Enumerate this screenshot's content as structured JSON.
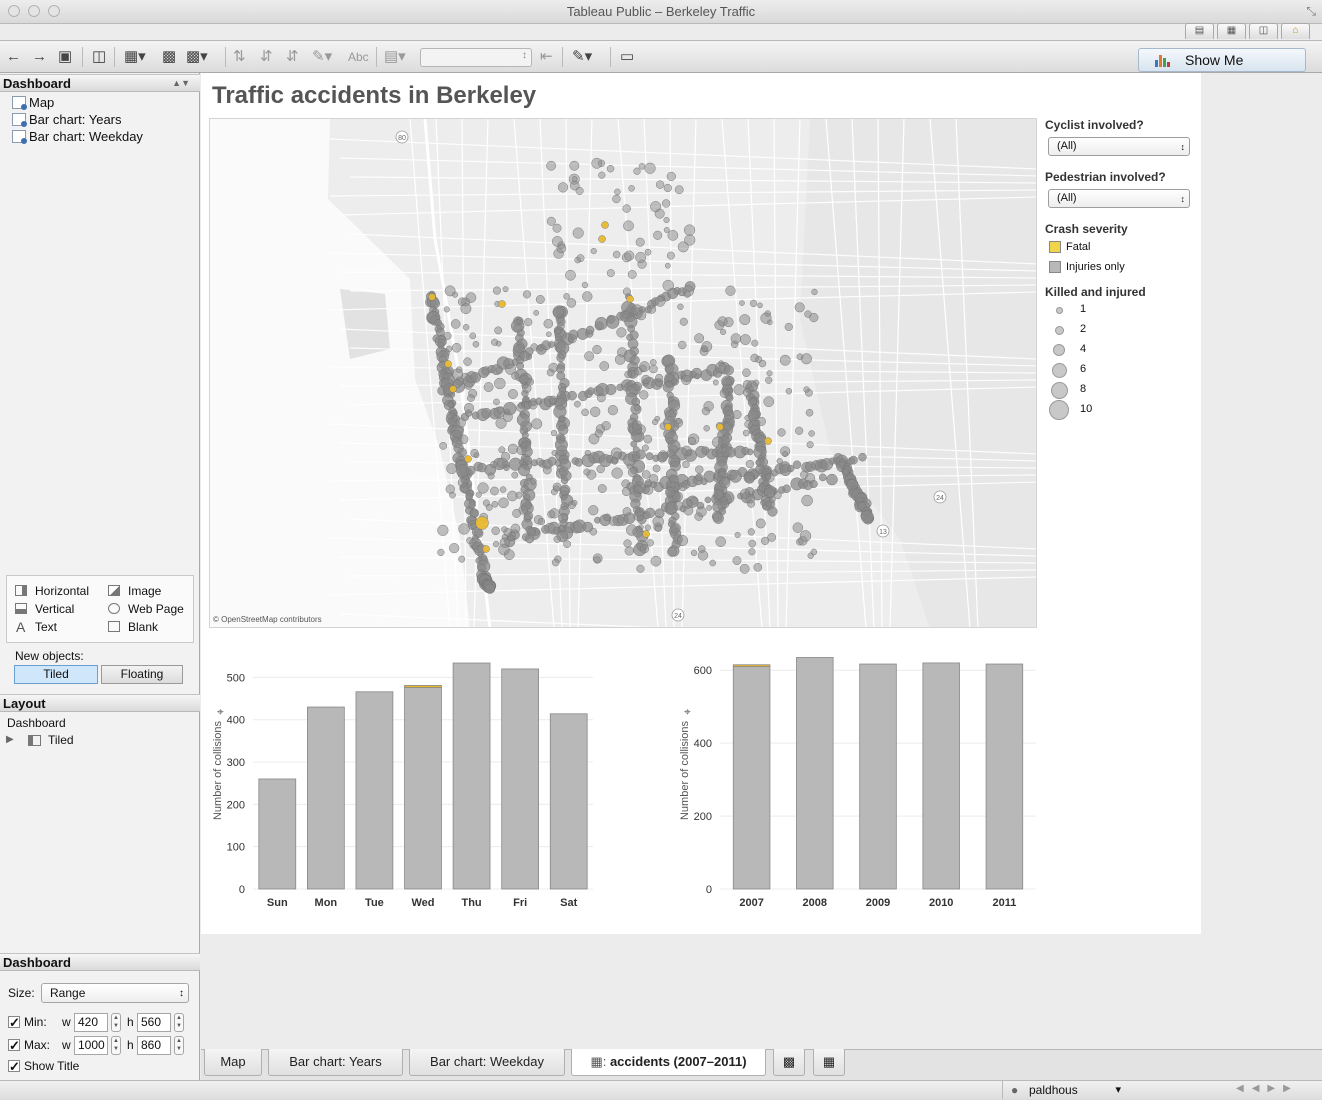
{
  "window": {
    "title": "Tableau Public – Berkeley Traffic"
  },
  "toolbar": {
    "show_me_label": "Show Me"
  },
  "dashboard_pane": {
    "header": "Dashboard",
    "sheets": [
      {
        "label": "Map"
      },
      {
        "label": "Bar chart: Years"
      },
      {
        "label": "Bar chart: Weekday"
      }
    ],
    "objects": {
      "horizontal": "Horizontal",
      "image": "Image",
      "vertical": "Vertical",
      "web_page": "Web Page",
      "text": "Text",
      "blank": "Blank"
    },
    "new_objects_label": "New objects:",
    "tiled_label": "Tiled",
    "floating_label": "Floating"
  },
  "layout_pane": {
    "header": "Layout",
    "root": "Dashboard",
    "child": "Tiled"
  },
  "size_pane": {
    "header": "Dashboard",
    "size_label": "Size:",
    "size_value": "Range",
    "min_label": "Min:",
    "max_label": "Max:",
    "w_label": "w",
    "h_label": "h",
    "min_w": "420",
    "min_h": "560",
    "max_w": "1000",
    "max_h": "860",
    "show_title_label": "Show Title"
  },
  "dashboard": {
    "title": "Traffic accidents in Berkeley",
    "map_credit": "© OpenStreetMap contributors",
    "road_markers": [
      "80",
      "24",
      "13",
      "24"
    ]
  },
  "filters": {
    "cyclist": {
      "label": "Cyclist involved?",
      "value": "(All)"
    },
    "pedestrian": {
      "label": "Pedestrian involved?",
      "value": "(All)"
    }
  },
  "legend_severity": {
    "title": "Crash severity",
    "items": [
      {
        "label": "Fatal",
        "color": "#f2d44a"
      },
      {
        "label": "Injuries only",
        "color": "#b8b8b8"
      }
    ]
  },
  "legend_size": {
    "title": "Killed and injured",
    "items": [
      "1",
      "2",
      "4",
      "6",
      "8",
      "10"
    ]
  },
  "colors": {
    "injuries_only": "#b8b8b8",
    "fatal": "#e8b92e",
    "map_point": "#8a8a8a"
  },
  "chart_data": [
    {
      "type": "bar",
      "title": "",
      "xlabel": "",
      "ylabel": "Number of collisions",
      "categories": [
        "Sun",
        "Mon",
        "Tue",
        "Wed",
        "Thu",
        "Fri",
        "Sat"
      ],
      "series": [
        {
          "name": "Injuries only",
          "values": [
            260,
            430,
            466,
            476,
            534,
            520,
            414
          ]
        },
        {
          "name": "Fatal",
          "values": [
            0,
            0,
            0,
            5,
            0,
            0,
            0
          ]
        }
      ],
      "yticks": [
        0,
        100,
        200,
        300,
        400,
        500
      ],
      "ylim": [
        0,
        560
      ],
      "stacked": true
    },
    {
      "type": "bar",
      "title": "",
      "xlabel": "",
      "ylabel": "Number of collisions",
      "categories": [
        "2007",
        "2008",
        "2009",
        "2010",
        "2011"
      ],
      "series": [
        {
          "name": "Injuries only",
          "values": [
            610,
            635,
            617,
            620,
            617
          ]
        },
        {
          "name": "Fatal",
          "values": [
            5,
            0,
            0,
            0,
            0
          ]
        }
      ],
      "yticks": [
        0,
        200,
        400,
        600
      ],
      "ylim": [
        0,
        650
      ],
      "stacked": true
    }
  ],
  "bottom_tabs": [
    "Map",
    "Bar chart: Years",
    "Bar chart: Weekday",
    "accidents (2007–2011)"
  ],
  "status": {
    "user": "paldhous"
  }
}
